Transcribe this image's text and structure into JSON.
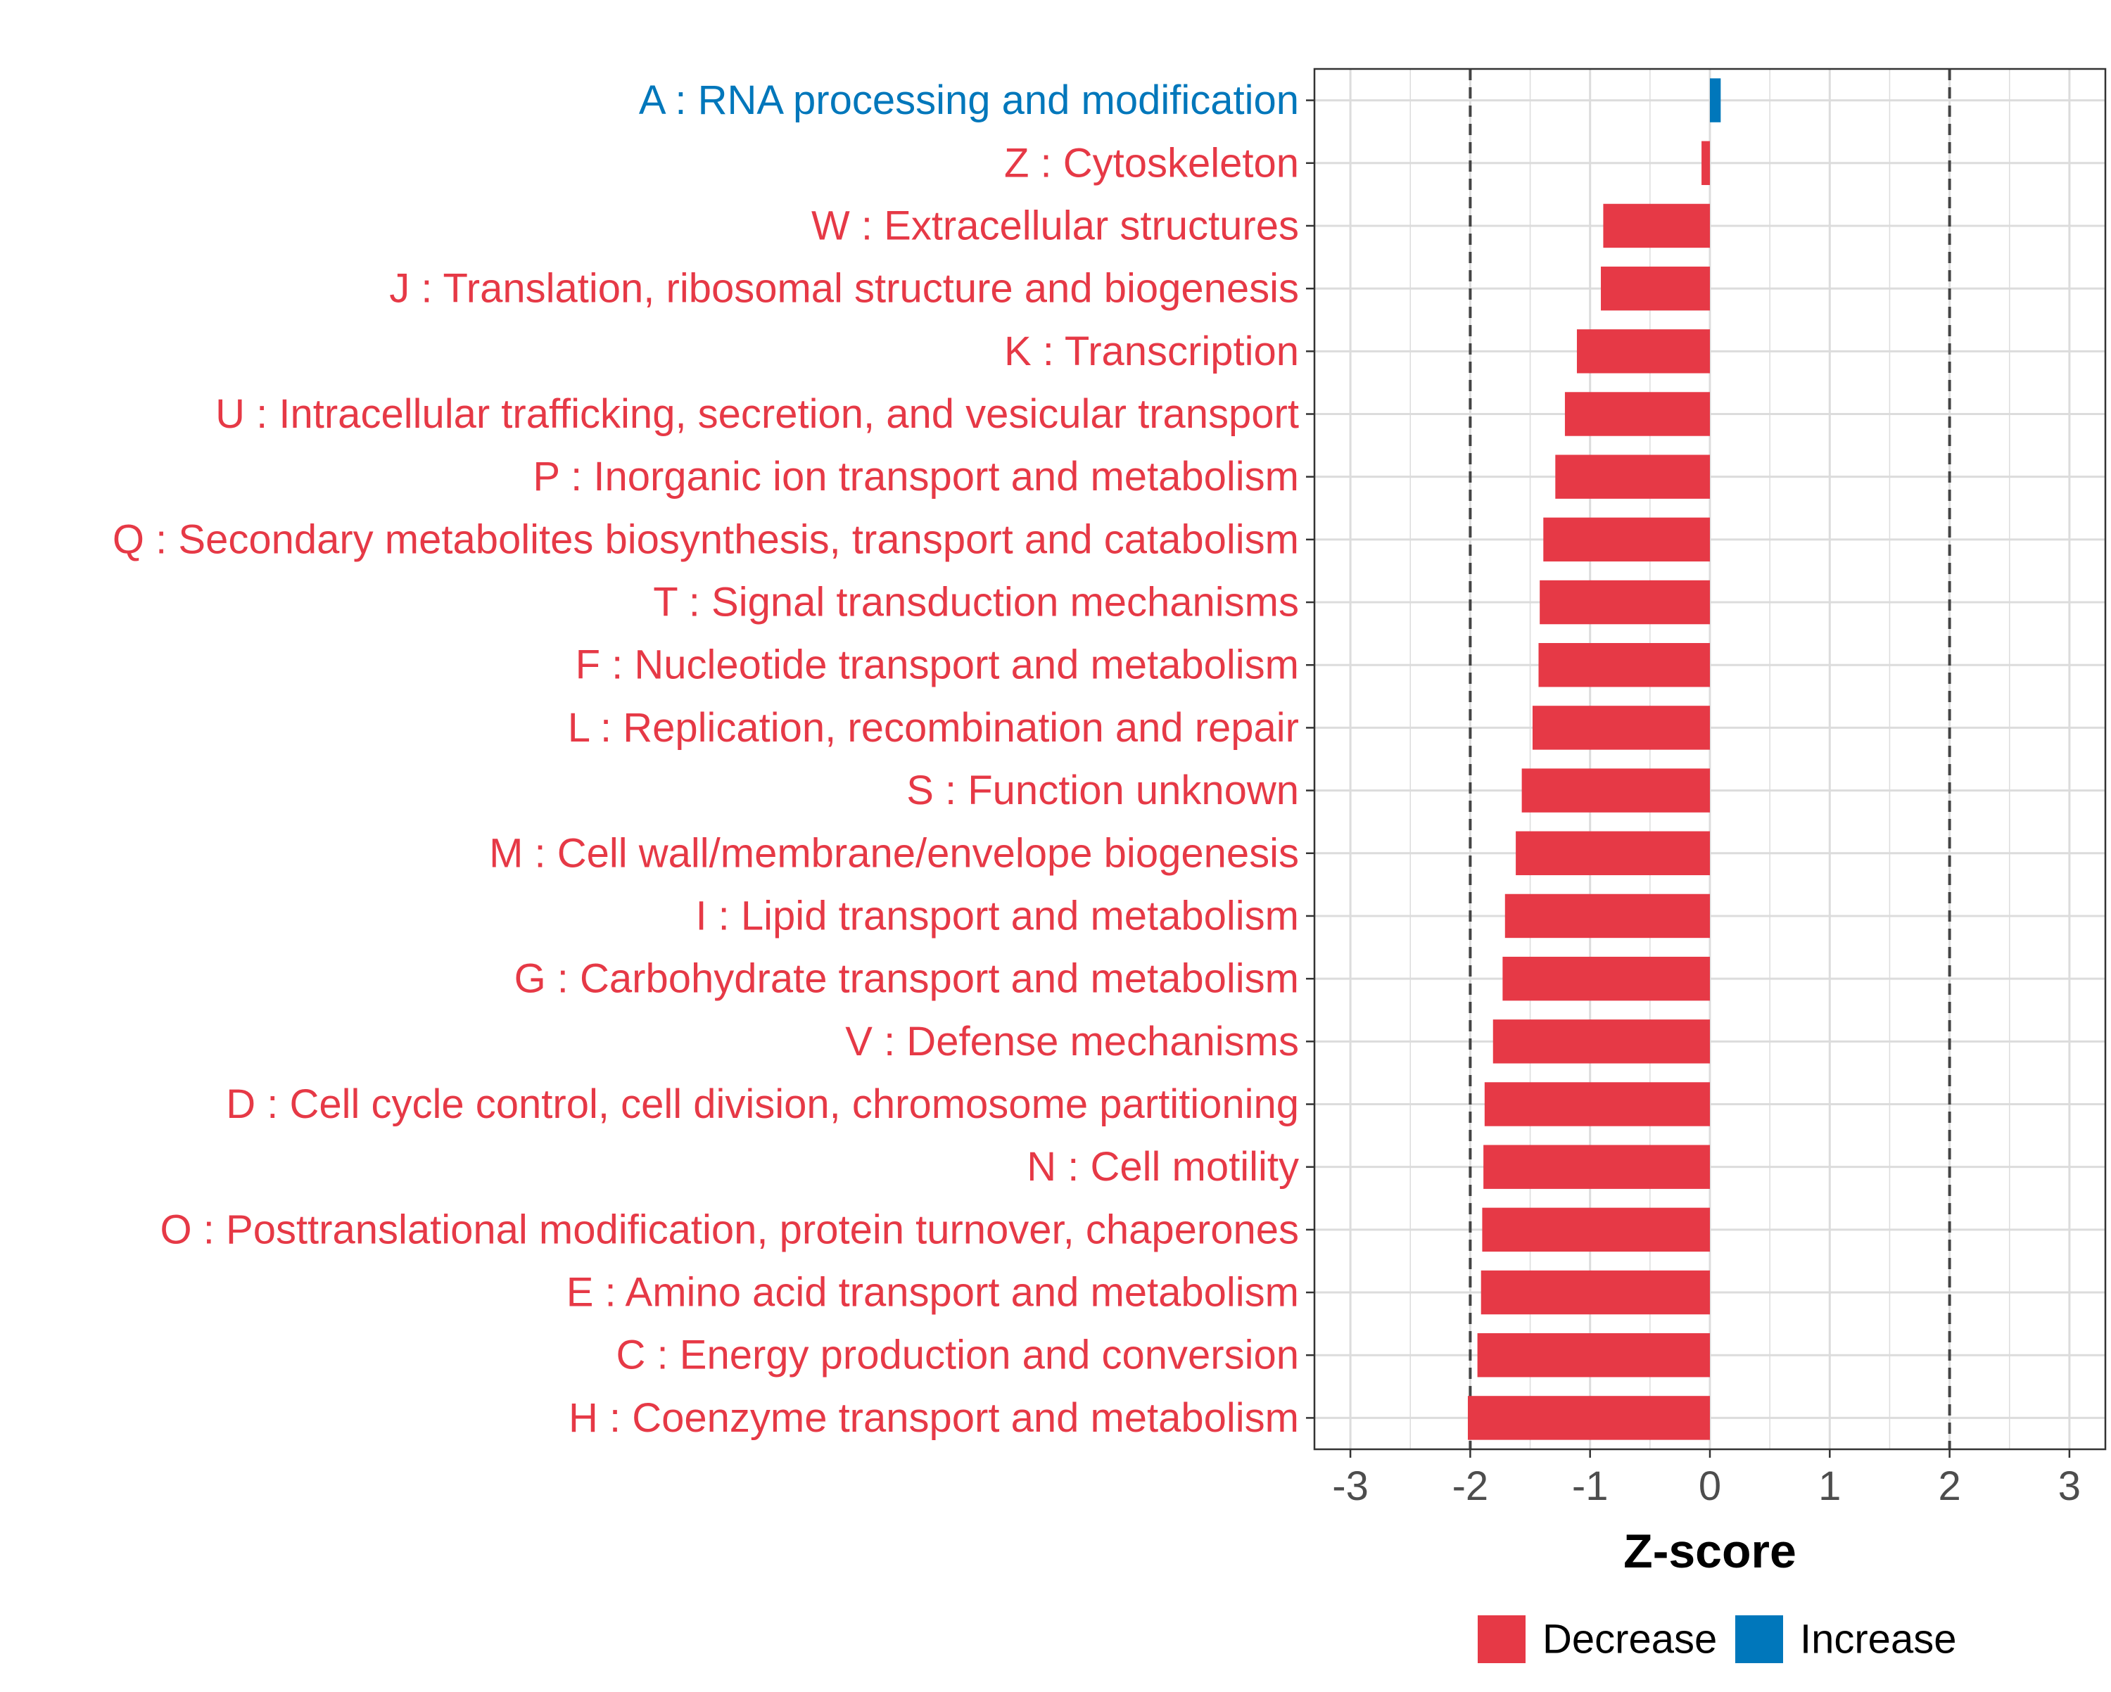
{
  "chart_data": {
    "type": "bar",
    "orientation": "horizontal",
    "xlabel": "Z-score",
    "ylabel": "",
    "xlim": [
      -3.3,
      3.3
    ],
    "xticks": [
      -3,
      -2,
      -1,
      0,
      1,
      2,
      3
    ],
    "x_tick_labels": [
      "-3",
      "-2",
      "-1",
      "0",
      "1",
      "2",
      "3"
    ],
    "reference_lines": [
      -2,
      2
    ],
    "grid": true,
    "colors": {
      "Decrease": "#e63946",
      "Increase": "#0077bb"
    },
    "legend": {
      "position": "bottom",
      "entries": [
        {
          "label": "Decrease",
          "color": "#e63946"
        },
        {
          "label": "Increase",
          "color": "#0077bb"
        }
      ]
    },
    "categories": [
      {
        "label": "A : RNA processing and modification",
        "value": 0.09,
        "group": "Increase"
      },
      {
        "label": "Z : Cytoskeleton",
        "value": -0.07,
        "group": "Decrease"
      },
      {
        "label": "W : Extracellular structures",
        "value": -0.89,
        "group": "Decrease"
      },
      {
        "label": "J : Translation, ribosomal structure and biogenesis",
        "value": -0.91,
        "group": "Decrease"
      },
      {
        "label": "K : Transcription",
        "value": -1.11,
        "group": "Decrease"
      },
      {
        "label": "U : Intracellular trafficking, secretion, and vesicular transport",
        "value": -1.21,
        "group": "Decrease"
      },
      {
        "label": "P : Inorganic ion transport and metabolism",
        "value": -1.29,
        "group": "Decrease"
      },
      {
        "label": "Q : Secondary metabolites biosynthesis, transport and catabolism",
        "value": -1.39,
        "group": "Decrease"
      },
      {
        "label": "T : Signal transduction mechanisms",
        "value": -1.42,
        "group": "Decrease"
      },
      {
        "label": "F : Nucleotide transport and metabolism",
        "value": -1.43,
        "group": "Decrease"
      },
      {
        "label": "L : Replication, recombination and repair",
        "value": -1.48,
        "group": "Decrease"
      },
      {
        "label": "S : Function unknown",
        "value": -1.57,
        "group": "Decrease"
      },
      {
        "label": "M : Cell wall/membrane/envelope biogenesis",
        "value": -1.62,
        "group": "Decrease"
      },
      {
        "label": "I : Lipid transport and metabolism",
        "value": -1.71,
        "group": "Decrease"
      },
      {
        "label": "G : Carbohydrate transport and metabolism",
        "value": -1.73,
        "group": "Decrease"
      },
      {
        "label": "V : Defense mechanisms",
        "value": -1.81,
        "group": "Decrease"
      },
      {
        "label": "D : Cell cycle control, cell division, chromosome partitioning",
        "value": -1.88,
        "group": "Decrease"
      },
      {
        "label": "N : Cell motility",
        "value": -1.89,
        "group": "Decrease"
      },
      {
        "label": "O : Posttranslational modification, protein turnover, chaperones",
        "value": -1.9,
        "group": "Decrease"
      },
      {
        "label": "E : Amino acid transport and metabolism",
        "value": -1.91,
        "group": "Decrease"
      },
      {
        "label": "C : Energy production and conversion",
        "value": -1.94,
        "group": "Decrease"
      },
      {
        "label": "H : Coenzyme transport and metabolism",
        "value": -2.02,
        "group": "Decrease"
      }
    ]
  }
}
